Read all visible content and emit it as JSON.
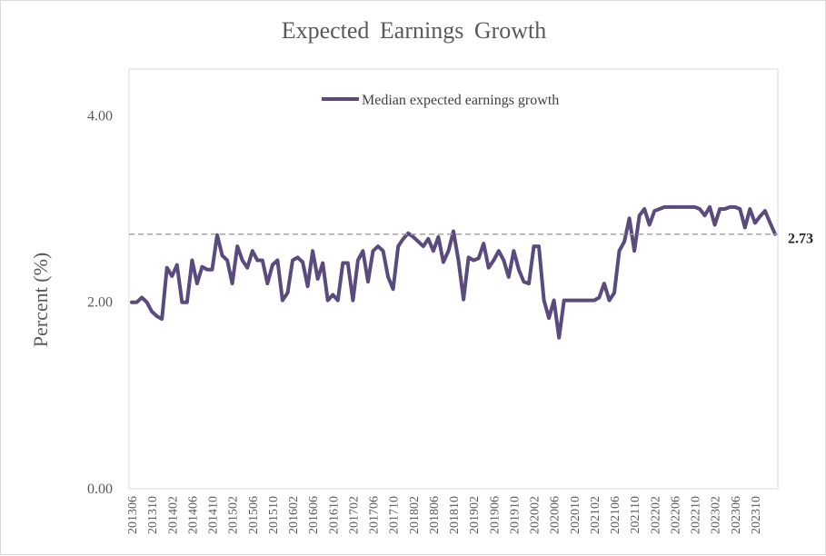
{
  "chart_data": {
    "type": "line",
    "title": "Expected Earnings Growth",
    "xlabel": "",
    "ylabel": "Percent (%)",
    "ylim": [
      0,
      4.5
    ],
    "y_ticks": [
      "0.00",
      "2.00",
      "4.00"
    ],
    "x_tick_labels": [
      "201306",
      "201310",
      "201402",
      "201406",
      "201410",
      "201502",
      "201506",
      "201510",
      "201602",
      "201606",
      "201610",
      "201702",
      "201706",
      "201710",
      "201802",
      "201806",
      "201810",
      "201902",
      "201906",
      "201910",
      "202002",
      "202006",
      "202010",
      "202102",
      "202106",
      "202110",
      "202202",
      "202206",
      "202210",
      "202302",
      "202306",
      "202310"
    ],
    "legend_position": "top-center",
    "grid": false,
    "series": [
      {
        "name": "Median expected earnings growth",
        "color": "#5b4a7e",
        "values": [
          2.0,
          2.0,
          2.05,
          2.0,
          1.9,
          1.85,
          1.82,
          2.37,
          2.28,
          2.4,
          2.0,
          2.0,
          2.45,
          2.2,
          2.38,
          2.35,
          2.35,
          2.72,
          2.5,
          2.45,
          2.2,
          2.6,
          2.45,
          2.37,
          2.55,
          2.45,
          2.45,
          2.2,
          2.4,
          2.45,
          2.02,
          2.1,
          2.45,
          2.48,
          2.43,
          2.17,
          2.55,
          2.25,
          2.42,
          2.02,
          2.08,
          2.02,
          2.42,
          2.42,
          2.02,
          2.45,
          2.55,
          2.22,
          2.55,
          2.6,
          2.55,
          2.27,
          2.14,
          2.6,
          2.68,
          2.74,
          2.7,
          2.65,
          2.6,
          2.68,
          2.55,
          2.7,
          2.43,
          2.55,
          2.76,
          2.45,
          2.03,
          2.48,
          2.45,
          2.47,
          2.63,
          2.37,
          2.45,
          2.55,
          2.45,
          2.27,
          2.55,
          2.35,
          2.22,
          2.2,
          2.6,
          2.6,
          2.02,
          1.83,
          2.02,
          1.62,
          2.02,
          2.02,
          2.02,
          2.02,
          2.02,
          2.02,
          2.02,
          2.05,
          2.2,
          2.02,
          2.1,
          2.55,
          2.65,
          2.9,
          2.55,
          2.93,
          3.0,
          2.83,
          2.98,
          3.0,
          3.02,
          3.02,
          3.02,
          3.02,
          3.02,
          3.02,
          3.02,
          3.0,
          2.93,
          3.02,
          2.83,
          3.0,
          3.0,
          3.02,
          3.02,
          3.0,
          2.8,
          3.0,
          2.85,
          2.92,
          2.98,
          2.85,
          2.73
        ]
      }
    ],
    "reference_line": {
      "value": 2.73,
      "label": "2.73",
      "style": "dashed",
      "color": "#a6a6a6"
    }
  }
}
